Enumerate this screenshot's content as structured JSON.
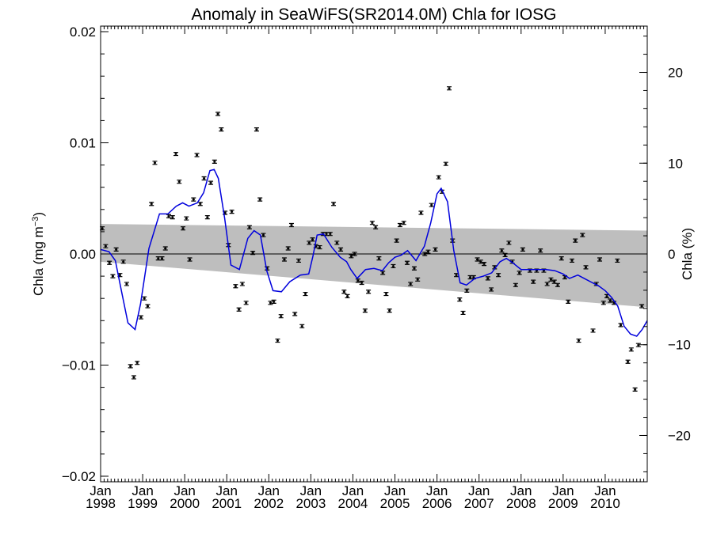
{
  "chart_data": {
    "type": "scatter",
    "title": "Anomaly in SeaWiFS(SR2014.0M) Chla for IOSG",
    "ylabel_main": "Chla (mg m",
    "ylabel_sup": "−3",
    "ylabel_close": ")",
    "ylabel_right": "Chla (%)",
    "xlim": [
      1998.0,
      2011.0
    ],
    "ylim": [
      -0.0205,
      0.0205
    ],
    "ylim_right": [
      -25.1,
      25.1
    ],
    "x_ticks": [
      {
        "top": "Jan",
        "bottom": "1998",
        "x": 1998.0
      },
      {
        "top": "Jan",
        "bottom": "1999",
        "x": 1999.0
      },
      {
        "top": "Jan",
        "bottom": "2000",
        "x": 2000.0
      },
      {
        "top": "Jan",
        "bottom": "2001",
        "x": 2001.0
      },
      {
        "top": "Jan",
        "bottom": "2002",
        "x": 2002.0
      },
      {
        "top": "Jan",
        "bottom": "2003",
        "x": 2003.0
      },
      {
        "top": "Jan",
        "bottom": "2004",
        "x": 2004.0
      },
      {
        "top": "Jan",
        "bottom": "2005",
        "x": 2005.0
      },
      {
        "top": "Jan",
        "bottom": "2006",
        "x": 2006.0
      },
      {
        "top": "Jan",
        "bottom": "2007",
        "x": 2007.0
      },
      {
        "top": "Jan",
        "bottom": "2008",
        "x": 2008.0
      },
      {
        "top": "Jan",
        "bottom": "2009",
        "x": 2009.0
      },
      {
        "top": "Jan",
        "bottom": "2010",
        "x": 2010.0
      }
    ],
    "y_ticks_left": [
      {
        "label": "0.02",
        "value": 0.02
      },
      {
        "label": "0.01",
        "value": 0.01
      },
      {
        "label": "0.00",
        "value": 0.0
      },
      {
        "label": "−0.01",
        "value": -0.01
      },
      {
        "label": "−0.02",
        "value": -0.02
      }
    ],
    "y_ticks_right": [
      {
        "label": "20",
        "value": 20
      },
      {
        "label": "10",
        "value": 10
      },
      {
        "label": "0",
        "value": 0
      },
      {
        "label": "−10",
        "value": -10
      },
      {
        "label": "−20",
        "value": -20
      }
    ],
    "zero_line": 0.0,
    "trend_band": {
      "x": [
        1998.0,
        2011.0
      ],
      "upper": [
        0.0027,
        0.0021
      ],
      "lower": [
        -0.0007,
        -0.0048
      ]
    },
    "points": [
      {
        "x": 1998.04,
        "y": 0.0023
      },
      {
        "x": 1998.12,
        "y": 0.0007
      },
      {
        "x": 1998.21,
        "y": -0.0008
      },
      {
        "x": 1998.29,
        "y": -0.002
      },
      {
        "x": 1998.37,
        "y": 0.0004
      },
      {
        "x": 1998.46,
        "y": -0.0019
      },
      {
        "x": 1998.54,
        "y": -0.0007
      },
      {
        "x": 1998.62,
        "y": -0.0027
      },
      {
        "x": 1998.71,
        "y": -0.0101
      },
      {
        "x": 1998.79,
        "y": -0.0111
      },
      {
        "x": 1998.87,
        "y": -0.0098
      },
      {
        "x": 1998.96,
        "y": -0.0057
      },
      {
        "x": 1999.04,
        "y": -0.004
      },
      {
        "x": 1999.12,
        "y": -0.0047
      },
      {
        "x": 1999.21,
        "y": 0.0045
      },
      {
        "x": 1999.29,
        "y": 0.0082
      },
      {
        "x": 1999.37,
        "y": -0.0004
      },
      {
        "x": 1999.46,
        "y": -0.0004
      },
      {
        "x": 1999.54,
        "y": 0.0005
      },
      {
        "x": 1999.62,
        "y": 0.0034
      },
      {
        "x": 1999.71,
        "y": 0.0033
      },
      {
        "x": 1999.79,
        "y": 0.009
      },
      {
        "x": 1999.87,
        "y": 0.0065
      },
      {
        "x": 1999.96,
        "y": 0.0023
      },
      {
        "x": 2000.04,
        "y": 0.0032
      },
      {
        "x": 2000.12,
        "y": -0.0005
      },
      {
        "x": 2000.21,
        "y": 0.0049
      },
      {
        "x": 2000.29,
        "y": 0.0089
      },
      {
        "x": 2000.37,
        "y": 0.0045
      },
      {
        "x": 2000.46,
        "y": 0.0068
      },
      {
        "x": 2000.54,
        "y": 0.0033
      },
      {
        "x": 2000.62,
        "y": 0.0064
      },
      {
        "x": 2000.71,
        "y": 0.0083
      },
      {
        "x": 2000.79,
        "y": 0.0126
      },
      {
        "x": 2000.87,
        "y": 0.0112
      },
      {
        "x": 2000.96,
        "y": 0.0037
      },
      {
        "x": 2001.04,
        "y": 0.0008
      },
      {
        "x": 2001.12,
        "y": 0.0038
      },
      {
        "x": 2001.21,
        "y": -0.0029
      },
      {
        "x": 2001.29,
        "y": -0.005
      },
      {
        "x": 2001.37,
        "y": -0.0027
      },
      {
        "x": 2001.46,
        "y": -0.0044
      },
      {
        "x": 2001.54,
        "y": 0.0024
      },
      {
        "x": 2001.62,
        "y": 0.0001
      },
      {
        "x": 2001.71,
        "y": 0.0112
      },
      {
        "x": 2001.79,
        "y": 0.0049
      },
      {
        "x": 2001.87,
        "y": 0.0017
      },
      {
        "x": 2001.96,
        "y": -0.0013
      },
      {
        "x": 2002.04,
        "y": -0.0044
      },
      {
        "x": 2002.12,
        "y": -0.0043
      },
      {
        "x": 2002.21,
        "y": -0.0078
      },
      {
        "x": 2002.29,
        "y": -0.0056
      },
      {
        "x": 2002.37,
        "y": -0.0005
      },
      {
        "x": 2002.46,
        "y": 0.0005
      },
      {
        "x": 2002.54,
        "y": 0.0026
      },
      {
        "x": 2002.62,
        "y": -0.0054
      },
      {
        "x": 2002.71,
        "y": -0.0006
      },
      {
        "x": 2002.79,
        "y": -0.0065
      },
      {
        "x": 2002.87,
        "y": -0.0036
      },
      {
        "x": 2002.96,
        "y": 0.001
      },
      {
        "x": 2003.04,
        "y": 0.0013
      },
      {
        "x": 2003.12,
        "y": 0.0007
      },
      {
        "x": 2003.21,
        "y": 0.0006
      },
      {
        "x": 2003.29,
        "y": 0.0018
      },
      {
        "x": 2003.37,
        "y": 0.0018
      },
      {
        "x": 2003.46,
        "y": 0.0018
      },
      {
        "x": 2003.54,
        "y": 0.0045
      },
      {
        "x": 2003.62,
        "y": 0.001
      },
      {
        "x": 2003.71,
        "y": 0.0004
      },
      {
        "x": 2003.79,
        "y": -0.0034
      },
      {
        "x": 2003.87,
        "y": -0.0038
      },
      {
        "x": 2003.96,
        "y": -0.0002
      },
      {
        "x": 2004.04,
        "y": 0.0
      },
      {
        "x": 2004.12,
        "y": -0.0024
      },
      {
        "x": 2004.21,
        "y": -0.0026
      },
      {
        "x": 2004.29,
        "y": -0.0051
      },
      {
        "x": 2004.37,
        "y": -0.0034
      },
      {
        "x": 2004.46,
        "y": 0.0028
      },
      {
        "x": 2004.54,
        "y": 0.0024
      },
      {
        "x": 2004.62,
        "y": -0.0004
      },
      {
        "x": 2004.71,
        "y": -0.0017
      },
      {
        "x": 2004.79,
        "y": -0.0036
      },
      {
        "x": 2004.87,
        "y": -0.0051
      },
      {
        "x": 2004.96,
        "y": -0.0011
      },
      {
        "x": 2005.04,
        "y": 0.0012
      },
      {
        "x": 2005.12,
        "y": 0.0026
      },
      {
        "x": 2005.21,
        "y": 0.0028
      },
      {
        "x": 2005.29,
        "y": -0.0008
      },
      {
        "x": 2005.37,
        "y": -0.0027
      },
      {
        "x": 2005.46,
        "y": -0.0013
      },
      {
        "x": 2005.54,
        "y": -0.0023
      },
      {
        "x": 2005.62,
        "y": 0.0037
      },
      {
        "x": 2005.71,
        "y": 0.0
      },
      {
        "x": 2005.79,
        "y": 0.0002
      },
      {
        "x": 2005.87,
        "y": 0.0044
      },
      {
        "x": 2005.96,
        "y": 0.0004
      },
      {
        "x": 2006.04,
        "y": 0.0069
      },
      {
        "x": 2006.12,
        "y": 0.0056
      },
      {
        "x": 2006.21,
        "y": 0.0081
      },
      {
        "x": 2006.29,
        "y": 0.0149
      },
      {
        "x": 2006.37,
        "y": 0.0012
      },
      {
        "x": 2006.46,
        "y": -0.0019
      },
      {
        "x": 2006.54,
        "y": -0.0041
      },
      {
        "x": 2006.62,
        "y": -0.0053
      },
      {
        "x": 2006.71,
        "y": -0.0033
      },
      {
        "x": 2006.79,
        "y": -0.0021
      },
      {
        "x": 2006.87,
        "y": -0.0021
      },
      {
        "x": 2006.96,
        "y": -0.0005
      },
      {
        "x": 2007.04,
        "y": -0.0007
      },
      {
        "x": 2007.12,
        "y": -0.0009
      },
      {
        "x": 2007.21,
        "y": -0.0022
      },
      {
        "x": 2007.29,
        "y": -0.0032
      },
      {
        "x": 2007.37,
        "y": -0.0012
      },
      {
        "x": 2007.46,
        "y": -0.0019
      },
      {
        "x": 2007.54,
        "y": 0.0003
      },
      {
        "x": 2007.62,
        "y": -0.0001
      },
      {
        "x": 2007.71,
        "y": 0.001
      },
      {
        "x": 2007.79,
        "y": -0.0007
      },
      {
        "x": 2007.87,
        "y": -0.0028
      },
      {
        "x": 2007.96,
        "y": -0.0017
      },
      {
        "x": 2008.04,
        "y": 0.0004
      },
      {
        "x": 2008.21,
        "y": -0.0015
      },
      {
        "x": 2008.29,
        "y": -0.0025
      },
      {
        "x": 2008.37,
        "y": -0.0015
      },
      {
        "x": 2008.46,
        "y": 0.0003
      },
      {
        "x": 2008.54,
        "y": -0.0015
      },
      {
        "x": 2008.62,
        "y": -0.0027
      },
      {
        "x": 2008.71,
        "y": -0.0023
      },
      {
        "x": 2008.79,
        "y": -0.0025
      },
      {
        "x": 2008.87,
        "y": -0.0028
      },
      {
        "x": 2008.96,
        "y": -0.0004
      },
      {
        "x": 2009.04,
        "y": -0.0021
      },
      {
        "x": 2009.12,
        "y": -0.0043
      },
      {
        "x": 2009.21,
        "y": -0.0006
      },
      {
        "x": 2009.29,
        "y": 0.0012
      },
      {
        "x": 2009.37,
        "y": -0.0078
      },
      {
        "x": 2009.46,
        "y": 0.0017
      },
      {
        "x": 2009.54,
        "y": -0.0012
      },
      {
        "x": 2009.71,
        "y": -0.0069
      },
      {
        "x": 2009.79,
        "y": -0.0027
      },
      {
        "x": 2009.87,
        "y": -0.0005
      },
      {
        "x": 2009.96,
        "y": -0.0044
      },
      {
        "x": 2010.04,
        "y": -0.0038
      },
      {
        "x": 2010.12,
        "y": -0.0042
      },
      {
        "x": 2010.21,
        "y": -0.0044
      },
      {
        "x": 2010.29,
        "y": -0.0006
      },
      {
        "x": 2010.37,
        "y": -0.0064
      },
      {
        "x": 2010.54,
        "y": -0.0097
      },
      {
        "x": 2010.62,
        "y": -0.0086
      },
      {
        "x": 2010.71,
        "y": -0.0122
      },
      {
        "x": 2010.79,
        "y": -0.0082
      },
      {
        "x": 2010.87,
        "y": -0.0047
      }
    ],
    "smoothed_line": [
      {
        "x": 1998.0,
        "y": 0.0004
      },
      {
        "x": 1998.2,
        "y": 0.0002
      },
      {
        "x": 1998.35,
        "y": -0.0006
      },
      {
        "x": 1998.5,
        "y": -0.0034
      },
      {
        "x": 1998.65,
        "y": -0.0062
      },
      {
        "x": 1998.82,
        "y": -0.0068
      },
      {
        "x": 1998.95,
        "y": -0.0045
      },
      {
        "x": 1999.15,
        "y": 0.0005
      },
      {
        "x": 1999.4,
        "y": 0.0036
      },
      {
        "x": 1999.6,
        "y": 0.0036
      },
      {
        "x": 1999.8,
        "y": 0.0043
      },
      {
        "x": 1999.95,
        "y": 0.0046
      },
      {
        "x": 2000.1,
        "y": 0.0043
      },
      {
        "x": 2000.3,
        "y": 0.0046
      },
      {
        "x": 2000.45,
        "y": 0.0055
      },
      {
        "x": 2000.6,
        "y": 0.0075
      },
      {
        "x": 2000.7,
        "y": 0.0076
      },
      {
        "x": 2000.8,
        "y": 0.0068
      },
      {
        "x": 2000.95,
        "y": 0.0032
      },
      {
        "x": 2001.1,
        "y": -0.001
      },
      {
        "x": 2001.3,
        "y": -0.0014
      },
      {
        "x": 2001.5,
        "y": 0.0014
      },
      {
        "x": 2001.65,
        "y": 0.0021
      },
      {
        "x": 2001.8,
        "y": 0.0017
      },
      {
        "x": 2001.95,
        "y": -0.0015
      },
      {
        "x": 2002.1,
        "y": -0.0033
      },
      {
        "x": 2002.3,
        "y": -0.0034
      },
      {
        "x": 2002.5,
        "y": -0.0025
      },
      {
        "x": 2002.75,
        "y": -0.0019
      },
      {
        "x": 2002.95,
        "y": -0.0018
      },
      {
        "x": 2003.05,
        "y": -0.0002
      },
      {
        "x": 2003.15,
        "y": 0.0017
      },
      {
        "x": 2003.3,
        "y": 0.0018
      },
      {
        "x": 2003.5,
        "y": 0.0006
      },
      {
        "x": 2003.7,
        "y": -0.0003
      },
      {
        "x": 2003.85,
        "y": -0.0007
      },
      {
        "x": 2003.95,
        "y": -0.0014
      },
      {
        "x": 2004.1,
        "y": -0.0022
      },
      {
        "x": 2004.3,
        "y": -0.0014
      },
      {
        "x": 2004.5,
        "y": -0.0013
      },
      {
        "x": 2004.7,
        "y": -0.0015
      },
      {
        "x": 2004.85,
        "y": -0.0008
      },
      {
        "x": 2005.0,
        "y": -0.0003
      },
      {
        "x": 2005.15,
        "y": -0.0001
      },
      {
        "x": 2005.3,
        "y": 0.0003
      },
      {
        "x": 2005.5,
        "y": -0.0006
      },
      {
        "x": 2005.7,
        "y": 0.0007
      },
      {
        "x": 2005.85,
        "y": 0.0028
      },
      {
        "x": 2006.0,
        "y": 0.0054
      },
      {
        "x": 2006.1,
        "y": 0.0059
      },
      {
        "x": 2006.25,
        "y": 0.0047
      },
      {
        "x": 2006.4,
        "y": 0.0003
      },
      {
        "x": 2006.55,
        "y": -0.0026
      },
      {
        "x": 2006.7,
        "y": -0.0028
      },
      {
        "x": 2006.9,
        "y": -0.0022
      },
      {
        "x": 2007.1,
        "y": -0.002
      },
      {
        "x": 2007.3,
        "y": -0.0017
      },
      {
        "x": 2007.5,
        "y": -0.0007
      },
      {
        "x": 2007.65,
        "y": -0.0004
      },
      {
        "x": 2007.8,
        "y": -0.0008
      },
      {
        "x": 2008.0,
        "y": -0.0014
      },
      {
        "x": 2008.3,
        "y": -0.0014
      },
      {
        "x": 2008.6,
        "y": -0.0014
      },
      {
        "x": 2008.8,
        "y": -0.0015
      },
      {
        "x": 2009.0,
        "y": -0.0018
      },
      {
        "x": 2009.15,
        "y": -0.0022
      },
      {
        "x": 2009.35,
        "y": -0.0019
      },
      {
        "x": 2009.5,
        "y": -0.0022
      },
      {
        "x": 2009.7,
        "y": -0.0026
      },
      {
        "x": 2009.85,
        "y": -0.0029
      },
      {
        "x": 2010.0,
        "y": -0.0033
      },
      {
        "x": 2010.15,
        "y": -0.0039
      },
      {
        "x": 2010.3,
        "y": -0.0047
      },
      {
        "x": 2010.45,
        "y": -0.0065
      },
      {
        "x": 2010.6,
        "y": -0.0072
      },
      {
        "x": 2010.75,
        "y": -0.0074
      },
      {
        "x": 2010.88,
        "y": -0.0068
      },
      {
        "x": 2011.0,
        "y": -0.006
      }
    ],
    "colors": {
      "band": "#bebebe",
      "smoothed_line": "#0000dd",
      "points": "#000000",
      "axes": "#000000"
    }
  }
}
